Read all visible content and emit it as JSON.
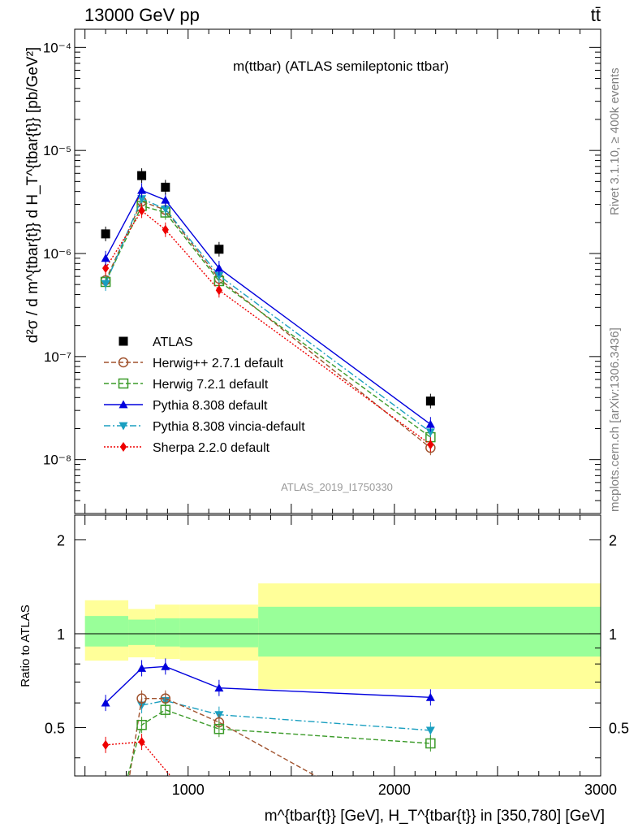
{
  "header": {
    "left": "13000 GeV pp",
    "right": "tt̄"
  },
  "side_text": {
    "rivet": "Rivet 3.1.10, ≥ 400k events",
    "mcplots": "mcplots.cern.ch [arXiv:1306.3436]"
  },
  "chart_data": [
    {
      "type": "scatter",
      "title": "m(ttbar) (ATLAS semileptonic ttbar)",
      "analysis_tag": "ATLAS_2019_I1750330",
      "ylabel": "d²σ / d m^{tbar{t}} d H_T^{tbar{t}} [pb/GeV²]",
      "yscale": "log",
      "xlim": [
        450,
        3000
      ],
      "ylim": [
        3e-09,
        0.00015
      ],
      "y_ticks": [
        "10⁻⁸",
        "10⁻⁷",
        "10⁻⁶",
        "10⁻⁵",
        "10⁻⁴"
      ],
      "legend_position": "lower-left",
      "series": [
        {
          "name": "ATLAS",
          "color": "#000000",
          "marker": "square-filled",
          "x": [
            600,
            775,
            890,
            1150,
            2175
          ],
          "y": [
            1.55e-06,
            5.7e-06,
            4.4e-06,
            1.1e-06,
            3.7e-08
          ]
        },
        {
          "name": "Herwig++ 2.7.1 default",
          "color": "#a0522d",
          "marker": "circle-open",
          "dash": "dashed",
          "x": [
            600,
            775,
            890,
            1150,
            2175
          ],
          "y": [
            5.5e-07,
            3.2e-06,
            2.65e-06,
            5.7e-07,
            1.3e-08
          ]
        },
        {
          "name": "Herwig 7.2.1 default",
          "color": "#3a9a28",
          "marker": "square-open",
          "dash": "dashed",
          "x": [
            600,
            775,
            890,
            1150,
            2175
          ],
          "y": [
            5.3e-07,
            2.9e-06,
            2.5e-06,
            5.4e-07,
            1.65e-08
          ]
        },
        {
          "name": "Pythia 8.308 default",
          "color": "#0000dd",
          "marker": "triangle-up",
          "dash": "solid",
          "x": [
            600,
            775,
            890,
            1150,
            2175
          ],
          "y": [
            9e-07,
            4.1e-06,
            3.3e-06,
            7.2e-07,
            2.2e-08
          ]
        },
        {
          "name": "Pythia 8.308 vincia-default",
          "color": "#1a9fc0",
          "marker": "triangle-down",
          "dash": "dashdot",
          "x": [
            600,
            775,
            890,
            1150,
            2175
          ],
          "y": [
            5.1e-07,
            3.4e-06,
            2.7e-06,
            6.1e-07,
            1.85e-08
          ]
        },
        {
          "name": "Sherpa 2.2.0 default",
          "color": "#ee0000",
          "marker": "diamond",
          "dash": "dotted",
          "x": [
            600,
            775,
            890,
            1150,
            2175
          ],
          "y": [
            7.2e-07,
            2.6e-06,
            1.7e-06,
            4.4e-07,
            1.4e-08
          ]
        }
      ]
    },
    {
      "type": "line",
      "ylabel": "Ratio to ATLAS",
      "xlabel": "m^{tbar{t}} [GeV], H_T^{tbar{t}} in [350,780] [GeV]",
      "xlim": [
        450,
        3000
      ],
      "ylim": [
        0.35,
        2.4
      ],
      "yscale": "log",
      "y_ticks": [
        "0.5",
        "1",
        "2"
      ],
      "x_ticks": [
        "1000",
        "2000",
        "3000"
      ],
      "bands": {
        "edges": [
          500,
          710,
          840,
          960,
          1340,
          3000
        ],
        "inner_low": [
          0.91,
          0.92,
          0.91,
          0.905,
          0.845
        ],
        "inner_high": [
          1.14,
          1.11,
          1.12,
          1.12,
          1.22
        ],
        "outer_low": [
          0.82,
          0.84,
          0.83,
          0.82,
          0.665
        ],
        "outer_high": [
          1.28,
          1.2,
          1.24,
          1.24,
          1.45
        ],
        "inner_color": "#99ff99",
        "outer_color": "#ffff99"
      },
      "series": [
        {
          "name": "Pythia 8.308 default",
          "color": "#0000dd",
          "marker": "triangle-up",
          "dash": "solid",
          "x": [
            600,
            775,
            890,
            1150,
            2175
          ],
          "y": [
            0.6,
            0.775,
            0.785,
            0.67,
            0.625
          ]
        },
        {
          "name": "Pythia 8.308 vincia-default",
          "color": "#1a9fc0",
          "marker": "triangle-down",
          "dash": "dashdot",
          "x": [
            775,
            890,
            1150,
            2175
          ],
          "y": [
            0.59,
            0.61,
            0.55,
            0.49
          ]
        },
        {
          "name": "Herwig++ 2.7.1 default",
          "color": "#a0522d",
          "marker": "circle-open",
          "dash": "dashed",
          "x": [
            700,
            775,
            890,
            1150,
            1800
          ],
          "y": [
            0.3,
            0.62,
            0.62,
            0.52,
            0.3
          ]
        },
        {
          "name": "Herwig 7.2.1 default",
          "color": "#3a9a28",
          "marker": "square-open",
          "dash": "dashed",
          "x": [
            680,
            775,
            890,
            1150,
            2175
          ],
          "y": [
            0.3,
            0.51,
            0.57,
            0.495,
            0.445
          ]
        },
        {
          "name": "Sherpa 2.2.0 default",
          "color": "#ee0000",
          "marker": "diamond",
          "dash": "dotted",
          "x": [
            600,
            775,
            1000
          ],
          "y": [
            0.44,
            0.45,
            0.3
          ]
        }
      ]
    }
  ]
}
